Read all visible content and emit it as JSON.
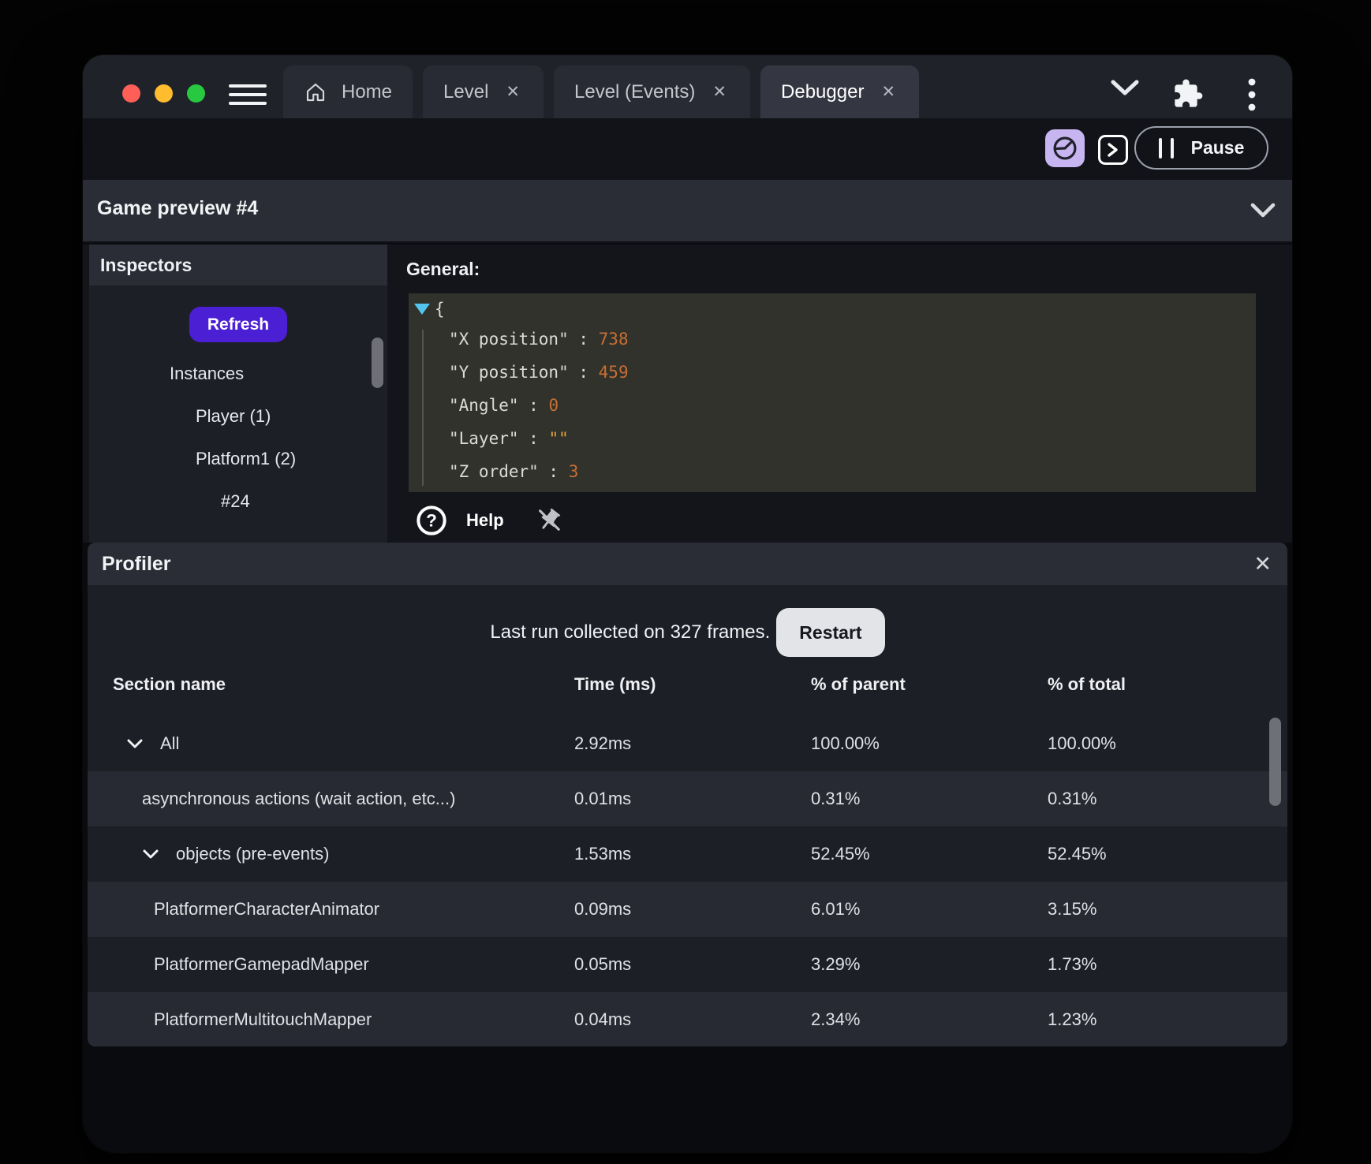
{
  "colors": {
    "accent_purple": "#4b1fd3",
    "accent_lavender": "#c7b5f2",
    "traffic_red": "#ff5f57",
    "traffic_yellow": "#febc2e",
    "traffic_green": "#28c840",
    "json_number": "#c76f35",
    "json_string": "#e3a23e",
    "json_expander": "#53c4ec"
  },
  "titlebar": {
    "tabs": [
      {
        "label": "Home",
        "icon": "home",
        "closable": false,
        "active": false
      },
      {
        "label": "Level",
        "icon": null,
        "closable": true,
        "active": false
      },
      {
        "label": "Level (Events)",
        "icon": null,
        "closable": true,
        "active": false
      },
      {
        "label": "Debugger",
        "icon": null,
        "closable": true,
        "active": true
      }
    ]
  },
  "toolbar": {
    "pause_label": "Pause"
  },
  "preview": {
    "title": "Game preview #4"
  },
  "inspectors": {
    "title": "Inspectors",
    "refresh_label": "Refresh",
    "items": [
      {
        "label": "Instances",
        "indent": 0
      },
      {
        "label": "Player (1)",
        "indent": 1
      },
      {
        "label": "Platform1 (2)",
        "indent": 1
      },
      {
        "label": "#24",
        "indent": 2
      }
    ]
  },
  "general": {
    "title": "General:",
    "open_brace": "{",
    "entries": [
      {
        "key": "X position",
        "value": "738",
        "kind": "number"
      },
      {
        "key": "Y position",
        "value": "459",
        "kind": "number"
      },
      {
        "key": "Angle",
        "value": "0",
        "kind": "number"
      },
      {
        "key": "Layer",
        "value": "\"\"",
        "kind": "string"
      },
      {
        "key": "Z order",
        "value": "3",
        "kind": "number"
      }
    ],
    "help_label": "Help"
  },
  "profiler": {
    "title": "Profiler",
    "status_text": "Last run collected on 327 frames.",
    "restart_label": "Restart",
    "table": {
      "headers": [
        "Section name",
        "Time (ms)",
        "% of parent",
        "% of total"
      ],
      "rows": [
        {
          "name": "All",
          "time": "2.92ms",
          "percent_of_parent": "100.00%",
          "percent_of_total": "100.00%",
          "expandable": true,
          "indent": 0
        },
        {
          "name": "asynchronous actions (wait action, etc...)",
          "time": "0.01ms",
          "percent_of_parent": "0.31%",
          "percent_of_total": "0.31%",
          "expandable": false,
          "indent": 1
        },
        {
          "name": "objects (pre-events)",
          "time": "1.53ms",
          "percent_of_parent": "52.45%",
          "percent_of_total": "52.45%",
          "expandable": true,
          "indent": 1
        },
        {
          "name": "PlatformerCharacterAnimator",
          "time": "0.09ms",
          "percent_of_parent": "6.01%",
          "percent_of_total": "3.15%",
          "expandable": false,
          "indent": 2
        },
        {
          "name": "PlatformerGamepadMapper",
          "time": "0.05ms",
          "percent_of_parent": "3.29%",
          "percent_of_total": "1.73%",
          "expandable": false,
          "indent": 2
        },
        {
          "name": "PlatformerMultitouchMapper",
          "time": "0.04ms",
          "percent_of_parent": "2.34%",
          "percent_of_total": "1.23%",
          "expandable": false,
          "indent": 2
        }
      ]
    }
  }
}
